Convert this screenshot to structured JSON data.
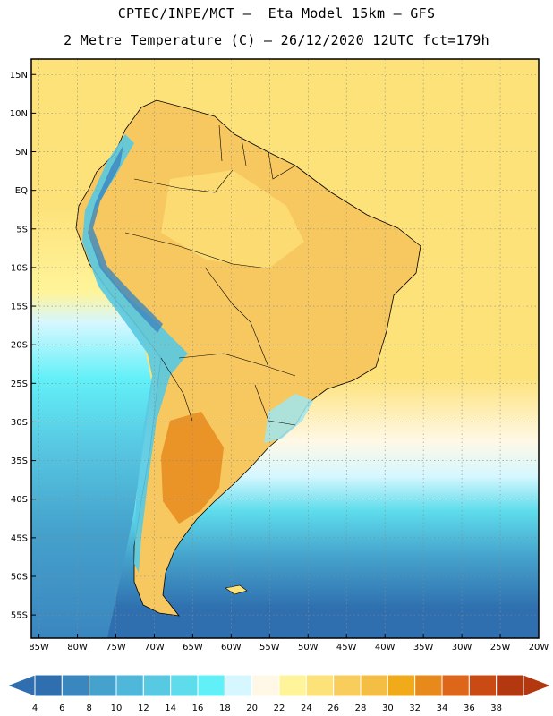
{
  "header": {
    "line1": "CPTEC/INPE/MCT –  Eta Model 15km – GFS",
    "line2": "2 Metre Temperature (C) – 26/12/2020 12UTC fct=179h"
  },
  "map": {
    "region": "South America",
    "projection": "lat-lon",
    "lon_range": [
      -86,
      -20
    ],
    "lat_range": [
      -58,
      17
    ],
    "gridlines": "dotted",
    "lat_ticks": [
      "15N",
      "10N",
      "5N",
      "EQ",
      "5S",
      "10S",
      "15S",
      "20S",
      "25S",
      "30S",
      "35S",
      "40S",
      "45S",
      "50S",
      "55S"
    ],
    "lon_ticks": [
      "85W",
      "80W",
      "75W",
      "70W",
      "65W",
      "60W",
      "55W",
      "50W",
      "45W",
      "40W",
      "35W",
      "30W",
      "25W",
      "20W"
    ]
  },
  "colorbar": {
    "labels": [
      "4",
      "6",
      "8",
      "10",
      "12",
      "14",
      "16",
      "18",
      "20",
      "22",
      "24",
      "26",
      "28",
      "30",
      "32",
      "34",
      "36",
      "38"
    ],
    "colors": [
      "#2f6faf",
      "#3a86bf",
      "#45a2cc",
      "#4fb7d9",
      "#58c9e3",
      "#5edcec",
      "#62f0f8",
      "#d6f7ff",
      "#fff8e6",
      "#fff49a",
      "#fde27a",
      "#f9cd5c",
      "#f4be44",
      "#f0aa1a",
      "#e8891c",
      "#de661a",
      "#c94a12",
      "#b33810"
    ],
    "low_color": "#2f6faf",
    "high_color": "#b33810"
  }
}
